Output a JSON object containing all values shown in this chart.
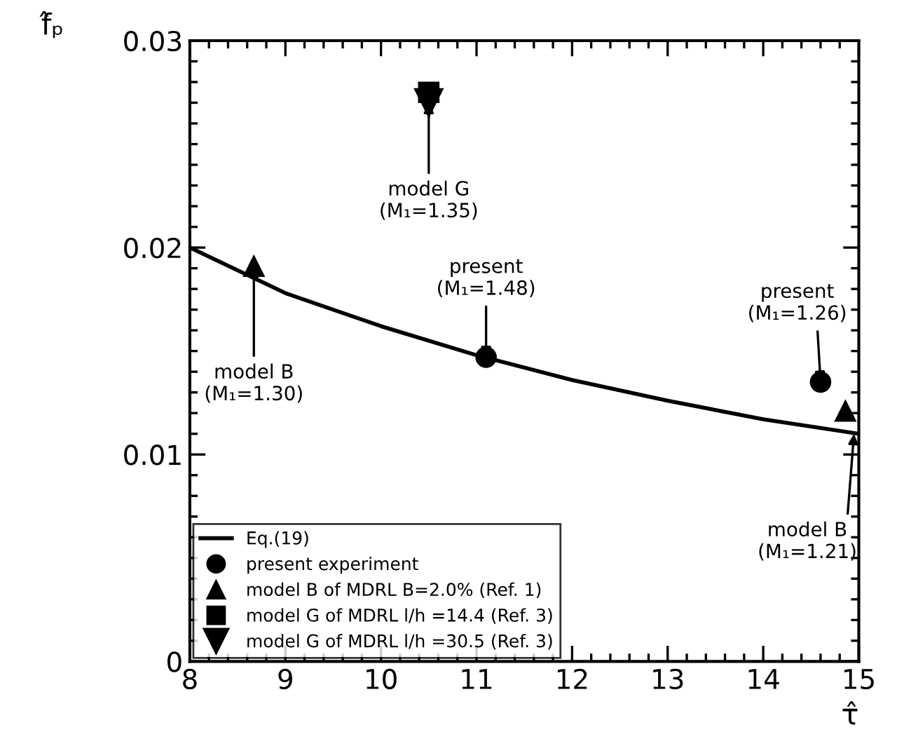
{
  "chart_data": {
    "type": "scatter",
    "xlabel": "τ̂",
    "ylabel": "f̂ₚ",
    "xlim": [
      8,
      15
    ],
    "xticks": [
      8,
      9,
      10,
      11,
      12,
      13,
      14,
      15
    ],
    "ylim": [
      0,
      0.03
    ],
    "yticks": [
      0,
      0.01,
      0.02,
      0.03
    ],
    "legend": "bottom left",
    "grid": false,
    "series": [
      {
        "name": "Eq.(19)",
        "type": "line",
        "color": "#000000",
        "marker": "none",
        "line_style": "solid",
        "x": [
          8,
          9,
          10,
          11,
          12,
          13,
          14,
          15
        ],
        "values": [
          0.02,
          0.0178,
          0.0162,
          0.0148,
          0.0136,
          0.0126,
          0.0117,
          0.011
        ]
      },
      {
        "name": "present experiment",
        "color": "#000000",
        "marker": "circle",
        "x": [
          11.1,
          14.6
        ],
        "values": [
          0.0147,
          0.0135
        ]
      },
      {
        "name": "model B of MDRL B=2.0% (Ref. 1)",
        "color": "#000000",
        "marker": "triangle",
        "x": [
          8.67,
          14.86
        ],
        "values": [
          0.0191,
          0.0121
        ]
      },
      {
        "name": "model G of MDRL l/h =30.5 (Ref. 3)",
        "color": "#000000",
        "marker": "triangle_down",
        "x": [
          10.5
        ],
        "values": [
          0.027
        ]
      },
      {
        "name": "model G of MDRL l/h =14.4 (Ref. 3)",
        "color": "#000000",
        "marker": "square",
        "x": [
          10.5
        ],
        "values": [
          0.0275
        ]
      }
    ],
    "annotations": [
      {
        "text": "model G\n(M₁=1.35)",
        "x": 10.5,
        "y": 0.027
      },
      {
        "text": "present\n(M₁=1.48)",
        "x": 11.1,
        "y": 0.0147
      },
      {
        "text": "present\n(M₁=1.26)",
        "x": 14.6,
        "y": 0.0135
      },
      {
        "text": "model B\n(M₁=1.30)",
        "x": 8.67,
        "y": 0.0191
      },
      {
        "text": "model B\n(M₁=1.21)",
        "x": 14.95,
        "y": 0.011
      }
    ]
  }
}
